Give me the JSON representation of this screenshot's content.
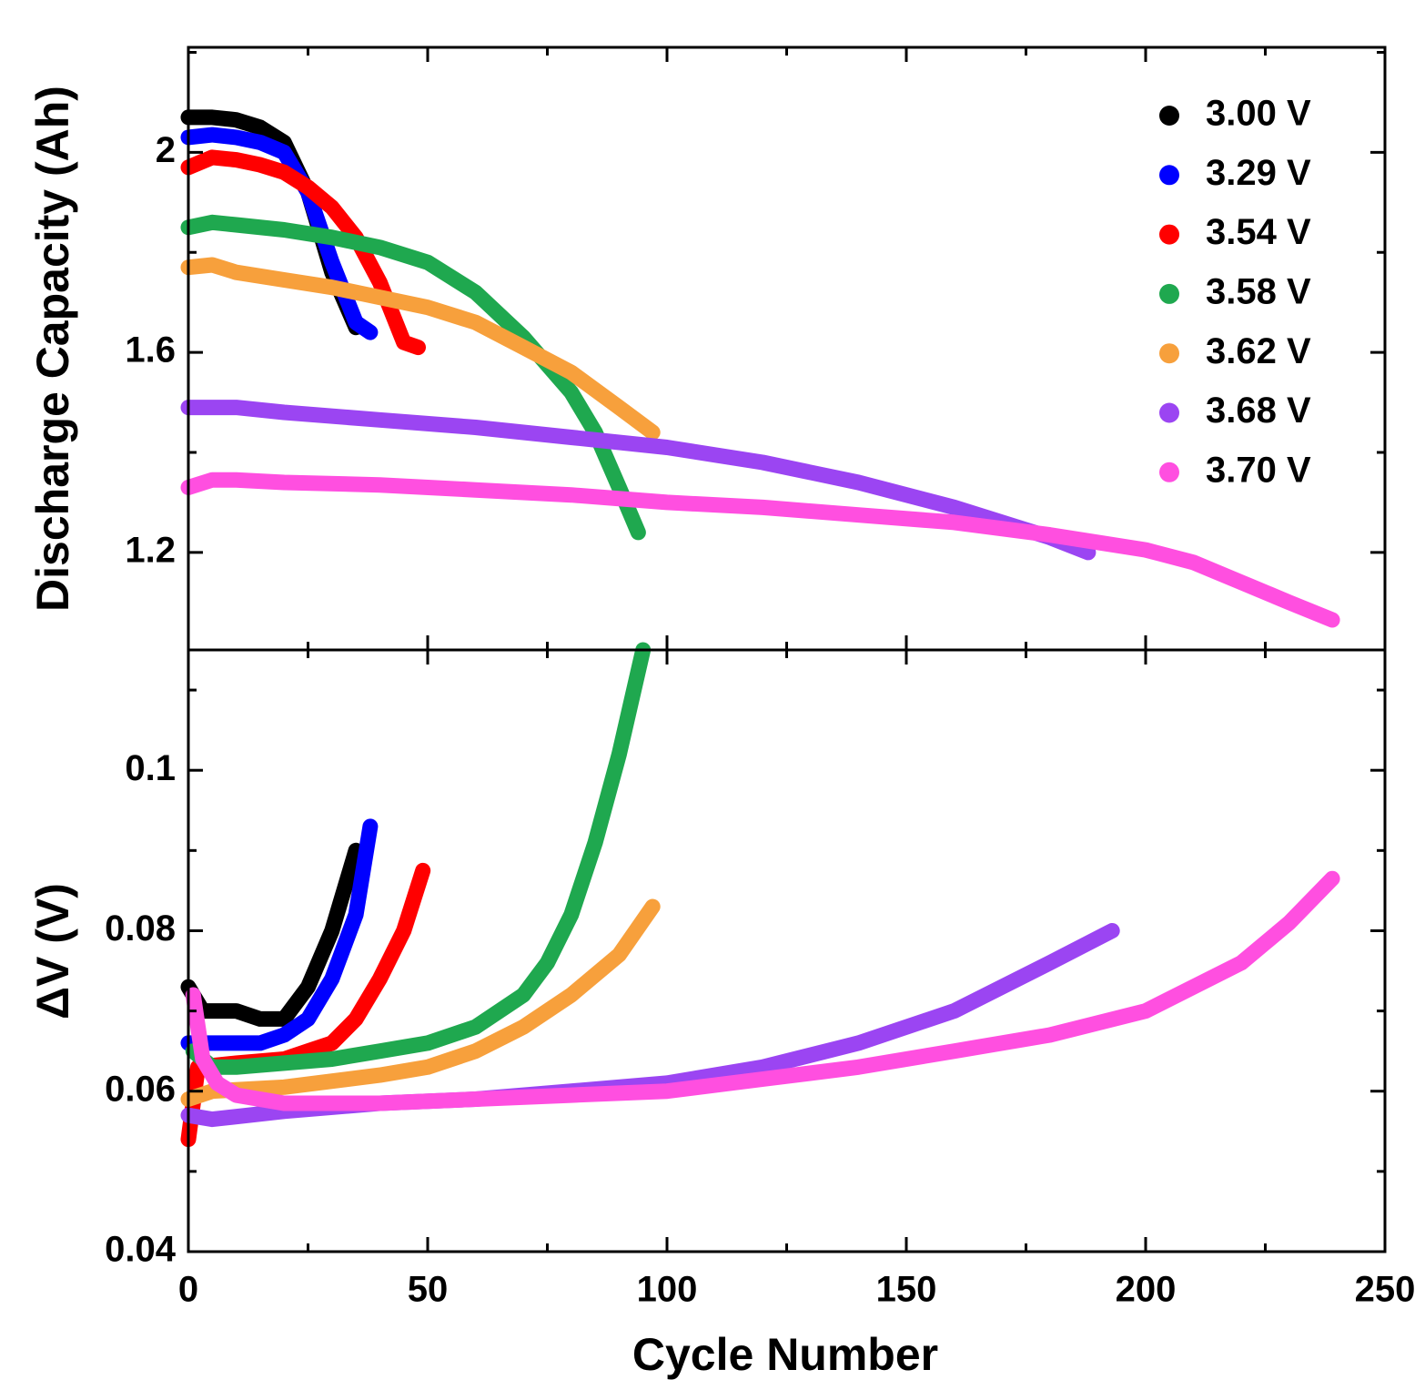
{
  "chart_data": [
    {
      "type": "scatter",
      "ylabel": "Discharge Capacity (Ah)",
      "xlim": [
        0,
        250
      ],
      "ylim": [
        1.005,
        2.21
      ],
      "yticks": [
        1.2,
        1.6,
        2
      ],
      "legend": "upper right",
      "series": [
        {
          "name": "3.00 V",
          "color": "#000000",
          "x": [
            0,
            5,
            10,
            15,
            20,
            25,
            30,
            35
          ],
          "values": [
            2.07,
            2.07,
            2.065,
            2.05,
            2.02,
            1.92,
            1.76,
            1.65
          ]
        },
        {
          "name": "3.29 V",
          "color": "#0000ff",
          "x": [
            0,
            5,
            10,
            15,
            20,
            25,
            30,
            35,
            38
          ],
          "values": [
            2.03,
            2.035,
            2.03,
            2.02,
            2.0,
            1.92,
            1.78,
            1.66,
            1.64
          ]
        },
        {
          "name": "3.54 V",
          "color": "#ff0000",
          "x": [
            0,
            5,
            10,
            15,
            20,
            25,
            30,
            35,
            40,
            45,
            48
          ],
          "values": [
            1.97,
            1.99,
            1.985,
            1.975,
            1.96,
            1.93,
            1.89,
            1.83,
            1.74,
            1.62,
            1.61
          ]
        },
        {
          "name": "3.58 V",
          "color": "#1fa84f",
          "x": [
            0,
            5,
            10,
            20,
            30,
            40,
            50,
            60,
            70,
            80,
            85,
            90,
            94
          ],
          "values": [
            1.85,
            1.86,
            1.855,
            1.845,
            1.83,
            1.81,
            1.78,
            1.72,
            1.63,
            1.52,
            1.44,
            1.33,
            1.24
          ]
        },
        {
          "name": "3.62 V",
          "color": "#f7a03c",
          "x": [
            0,
            5,
            10,
            20,
            30,
            40,
            50,
            60,
            70,
            80,
            90,
            97
          ],
          "values": [
            1.77,
            1.775,
            1.76,
            1.745,
            1.73,
            1.71,
            1.69,
            1.66,
            1.61,
            1.56,
            1.49,
            1.44
          ]
        },
        {
          "name": "3.68 V",
          "color": "#9b45f2",
          "x": [
            0,
            10,
            20,
            40,
            60,
            80,
            100,
            120,
            140,
            160,
            180,
            188
          ],
          "values": [
            1.49,
            1.49,
            1.48,
            1.465,
            1.45,
            1.43,
            1.41,
            1.38,
            1.34,
            1.29,
            1.23,
            1.2
          ]
        },
        {
          "name": "3.70 V",
          "color": "#ff4fe0",
          "x": [
            0,
            5,
            10,
            20,
            40,
            60,
            80,
            100,
            120,
            140,
            160,
            180,
            200,
            210,
            220,
            230,
            239
          ],
          "values": [
            1.33,
            1.345,
            1.345,
            1.34,
            1.335,
            1.325,
            1.315,
            1.3,
            1.29,
            1.275,
            1.26,
            1.235,
            1.205,
            1.18,
            1.14,
            1.1,
            1.065
          ]
        }
      ]
    },
    {
      "type": "scatter",
      "ylabel": "ΔV (V)",
      "xlabel": "Cycle Number",
      "xlim": [
        0,
        250
      ],
      "xticks": [
        0,
        50,
        100,
        150,
        200,
        250
      ],
      "ylim": [
        0.04,
        0.115
      ],
      "yticks": [
        0.04,
        0.06,
        0.08,
        0.1
      ],
      "series": [
        {
          "color": "#000000",
          "x": [
            0,
            3,
            10,
            15,
            20,
            25,
            30,
            35
          ],
          "values": [
            0.073,
            0.07,
            0.07,
            0.069,
            0.069,
            0.073,
            0.08,
            0.09
          ]
        },
        {
          "color": "#0000ff",
          "x": [
            0,
            5,
            10,
            15,
            20,
            25,
            30,
            35,
            38
          ],
          "values": [
            0.066,
            0.066,
            0.066,
            0.066,
            0.067,
            0.069,
            0.074,
            0.082,
            0.093
          ]
        },
        {
          "color": "#ff0000",
          "x": [
            0,
            2,
            10,
            20,
            25,
            30,
            35,
            40,
            45,
            49
          ],
          "values": [
            0.054,
            0.063,
            0.0635,
            0.064,
            0.065,
            0.066,
            0.069,
            0.074,
            0.08,
            0.0875
          ]
        },
        {
          "color": "#1fa84f",
          "x": [
            1,
            5,
            10,
            20,
            30,
            40,
            50,
            60,
            70,
            75,
            80,
            85,
            90,
            95
          ],
          "values": [
            0.065,
            0.063,
            0.063,
            0.0635,
            0.064,
            0.065,
            0.066,
            0.068,
            0.072,
            0.076,
            0.082,
            0.091,
            0.102,
            0.115
          ]
        },
        {
          "color": "#f7a03c",
          "x": [
            0,
            5,
            20,
            40,
            50,
            60,
            70,
            80,
            90,
            97
          ],
          "values": [
            0.059,
            0.06,
            0.0605,
            0.062,
            0.063,
            0.065,
            0.068,
            0.072,
            0.077,
            0.083
          ]
        },
        {
          "color": "#9b45f2",
          "x": [
            0,
            5,
            20,
            40,
            60,
            80,
            100,
            120,
            140,
            160,
            180,
            193
          ],
          "values": [
            0.057,
            0.0565,
            0.0575,
            0.0585,
            0.059,
            0.06,
            0.061,
            0.063,
            0.066,
            0.07,
            0.076,
            0.08
          ]
        },
        {
          "color": "#ff4fe0",
          "x": [
            1,
            3,
            6,
            10,
            20,
            40,
            60,
            80,
            100,
            120,
            140,
            160,
            180,
            200,
            220,
            230,
            239
          ],
          "values": [
            0.072,
            0.064,
            0.061,
            0.0595,
            0.0585,
            0.0585,
            0.059,
            0.0595,
            0.06,
            0.0615,
            0.063,
            0.065,
            0.067,
            0.07,
            0.076,
            0.081,
            0.0865
          ]
        }
      ]
    }
  ]
}
